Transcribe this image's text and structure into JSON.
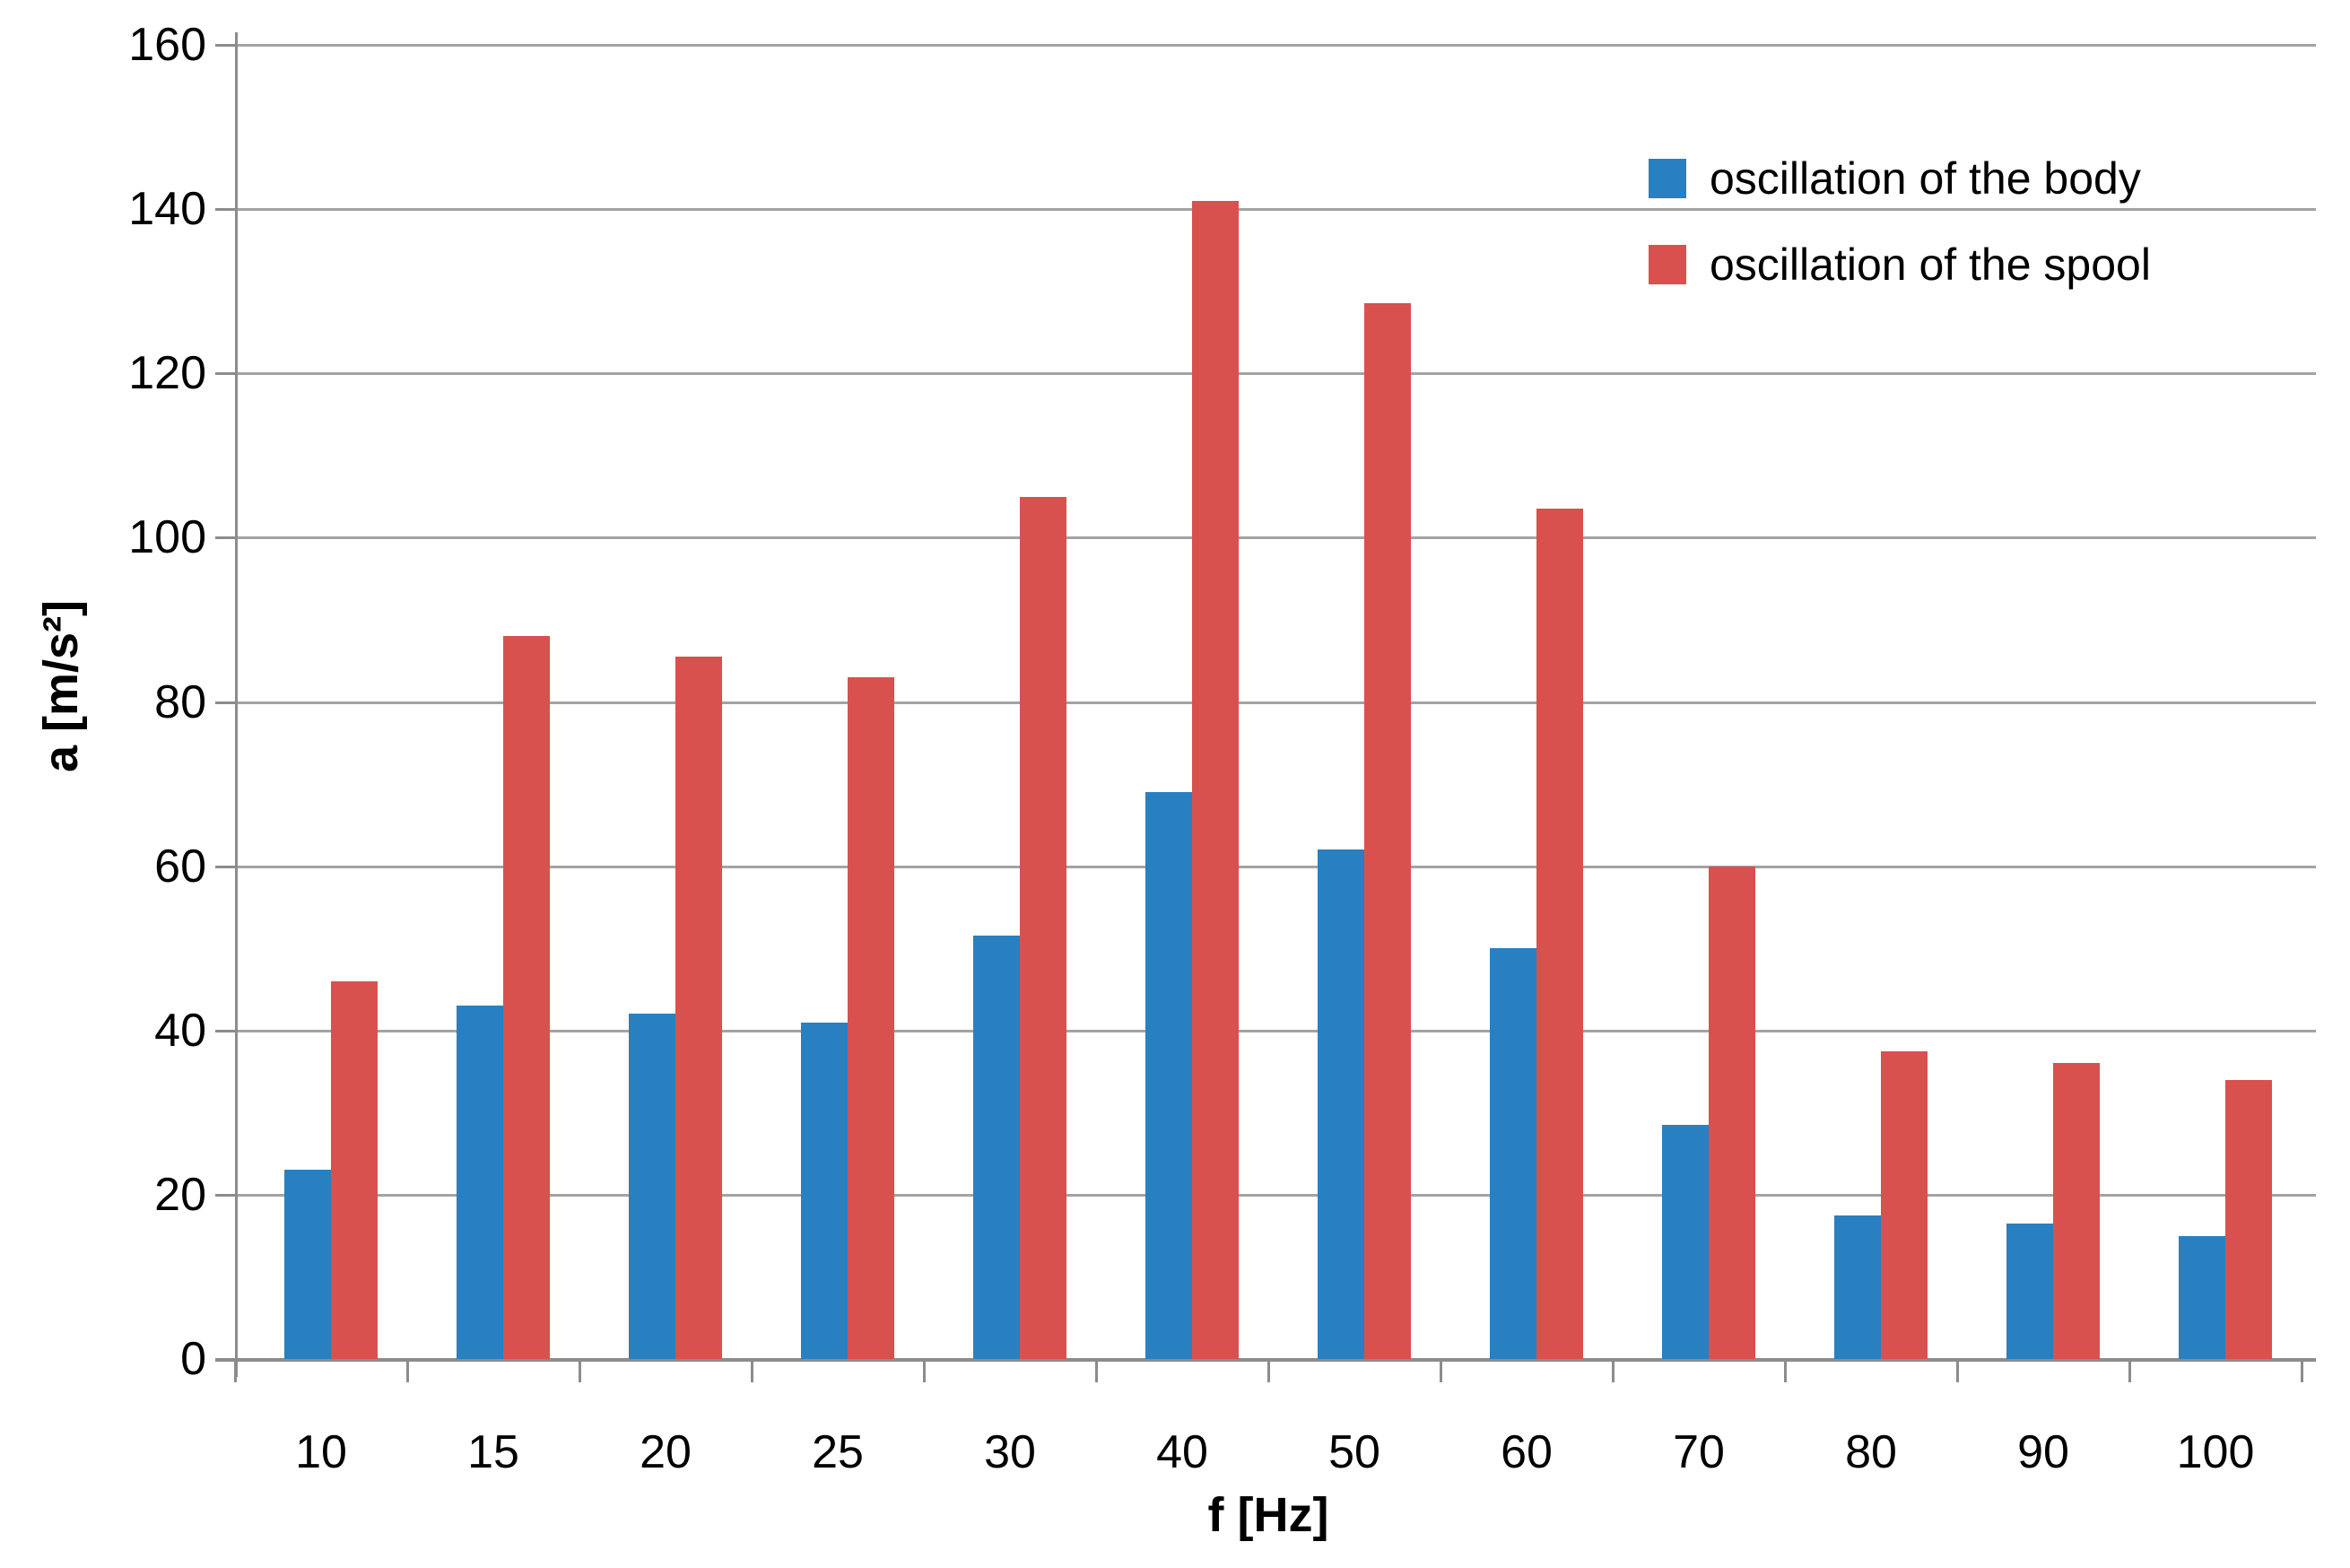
{
  "chart_data": {
    "type": "bar",
    "title": "",
    "categories": [
      "10",
      "15",
      "20",
      "25",
      "30",
      "40",
      "50",
      "60",
      "70",
      "80",
      "90",
      "100"
    ],
    "series": [
      {
        "name": "oscillation of the body",
        "color": "#2980c0",
        "values": [
          23,
          43,
          42,
          41,
          51.5,
          69,
          62,
          50,
          28.5,
          17.5,
          16.5,
          15
        ]
      },
      {
        "name": "oscillation of the spool",
        "color": "#d9514e",
        "values": [
          46,
          88,
          85.5,
          83,
          105,
          141,
          128.5,
          103.5,
          60,
          37.5,
          36,
          34
        ]
      }
    ],
    "xlabel": "f [Hz]",
    "ylabel": "a [m/s²]",
    "ylim": [
      0,
      160
    ],
    "ytick_step": 20,
    "ytick_labels": [
      "0",
      "20",
      "40",
      "60",
      "80",
      "100",
      "120",
      "140",
      "160"
    ],
    "grid": true,
    "legend_position": "upper-right",
    "background": "#ffffff",
    "grid_color": "#a3a3a3",
    "axis_color": "#8c8c8c",
    "text_color": "#000000"
  }
}
